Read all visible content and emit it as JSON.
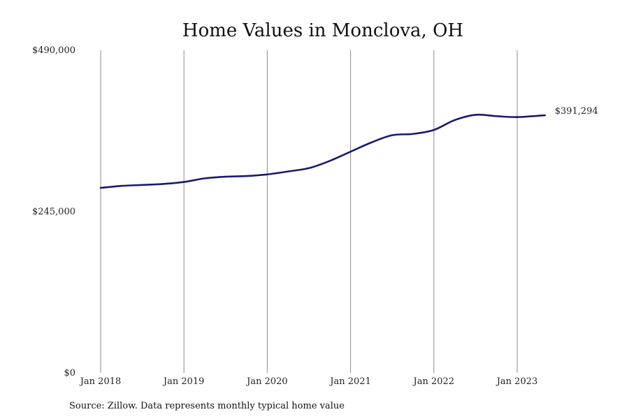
{
  "chart_data": {
    "type": "line",
    "title": "Home Values in Monclova, OH",
    "xlabel": "",
    "ylabel": "",
    "source": "Source: Zillow. Data represents monthly typical home value",
    "ylim": [
      0,
      490000
    ],
    "yticks": [
      {
        "value": 0,
        "label": "$0"
      },
      {
        "value": 245000,
        "label": "$245,000"
      },
      {
        "value": 490000,
        "label": "$490,000"
      }
    ],
    "xticks": [
      {
        "value": "2018-01",
        "label": "Jan 2018"
      },
      {
        "value": "2019-01",
        "label": "Jan 2019"
      },
      {
        "value": "2020-01",
        "label": "Jan 2020"
      },
      {
        "value": "2021-01",
        "label": "Jan 2021"
      },
      {
        "value": "2022-01",
        "label": "Jan 2022"
      },
      {
        "value": "2023-01",
        "label": "Jan 2023"
      }
    ],
    "xlim": [
      "2018-01",
      "2023-05"
    ],
    "grid": {
      "vertical": true,
      "horizontal": false
    },
    "line_color": "#1a1a6e",
    "end_label": "$391,294",
    "series": [
      {
        "points": [
          {
            "x": "2018-01",
            "y": 281000
          },
          {
            "x": "2018-04",
            "y": 284000
          },
          {
            "x": "2018-07",
            "y": 285500
          },
          {
            "x": "2018-10",
            "y": 287000
          },
          {
            "x": "2019-01",
            "y": 290000
          },
          {
            "x": "2019-04",
            "y": 295500
          },
          {
            "x": "2019-07",
            "y": 298000
          },
          {
            "x": "2019-10",
            "y": 299000
          },
          {
            "x": "2020-01",
            "y": 301500
          },
          {
            "x": "2020-04",
            "y": 306000
          },
          {
            "x": "2020-07",
            "y": 311000
          },
          {
            "x": "2020-10",
            "y": 322000
          },
          {
            "x": "2021-01",
            "y": 336000
          },
          {
            "x": "2021-04",
            "y": 350000
          },
          {
            "x": "2021-07",
            "y": 361000
          },
          {
            "x": "2021-10",
            "y": 363000
          },
          {
            "x": "2022-01",
            "y": 369000
          },
          {
            "x": "2022-04",
            "y": 384000
          },
          {
            "x": "2022-07",
            "y": 392000
          },
          {
            "x": "2022-10",
            "y": 390000
          },
          {
            "x": "2023-01",
            "y": 388500
          },
          {
            "x": "2023-05",
            "y": 391294
          }
        ]
      }
    ]
  }
}
